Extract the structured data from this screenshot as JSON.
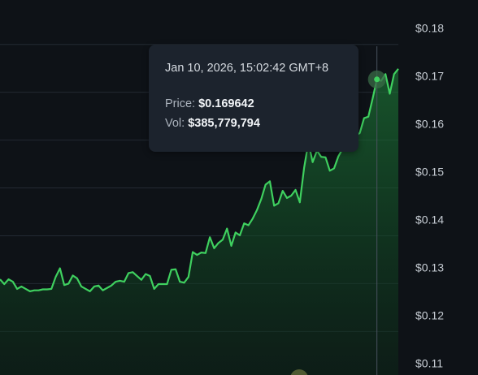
{
  "chart_data": {
    "type": "area",
    "ylim": [
      0.1075,
      0.1825
    ],
    "y_ticks": [
      "$0.18",
      "$0.17",
      "$0.16",
      "$0.15",
      "$0.14",
      "$0.13",
      "$0.12",
      "$0.11"
    ],
    "y_tick_values": [
      0.18,
      0.17,
      0.16,
      0.15,
      0.14,
      0.13,
      0.12,
      0.11
    ],
    "grid": true,
    "series": [
      {
        "values": [
          0.1275,
          0.1265,
          0.1275,
          0.127,
          0.1255,
          0.126,
          0.1255,
          0.125,
          0.1252,
          0.1252,
          0.1254,
          0.1254,
          0.1255,
          0.128,
          0.1298,
          0.1263,
          0.1266,
          0.1283,
          0.1277,
          0.126,
          0.1255,
          0.125,
          0.126,
          0.1262,
          0.1252,
          0.1257,
          0.1262,
          0.127,
          0.1272,
          0.127,
          0.1288,
          0.129,
          0.1282,
          0.1274,
          0.1286,
          0.1282,
          0.1255,
          0.1265,
          0.1265,
          0.1265,
          0.1295,
          0.1296,
          0.127,
          0.1268,
          0.128,
          0.1332,
          0.1326,
          0.1331,
          0.133,
          0.1363,
          0.134,
          0.1351,
          0.1358,
          0.1381,
          0.1345,
          0.1373,
          0.1367,
          0.1392,
          0.1388,
          0.1402,
          0.142,
          0.1443,
          0.1473,
          0.148,
          0.1429,
          0.1434,
          0.146,
          0.1445,
          0.145,
          0.1462,
          0.1436,
          0.1508,
          0.1561,
          0.152,
          0.1544,
          0.1531,
          0.153,
          0.1502,
          0.1507,
          0.1532,
          0.1548,
          0.1551,
          0.1576,
          0.1575,
          0.1581,
          0.1612,
          0.1615,
          0.1653,
          0.1693,
          0.169,
          0.1704,
          0.1663,
          0.1704,
          0.1715
        ]
      }
    ]
  },
  "tooltip": {
    "date": "Jan 10, 2026, 15:02:42 GMT+8",
    "price_label": "Price:",
    "price_value": "$0.169642",
    "vol_label": "Vol:",
    "vol_value": "$385,779,794"
  },
  "colors": {
    "background": "#0e1217",
    "line": "#3fd05f",
    "grid": "#232a33",
    "tooltip_bg": "#1c232d",
    "crosshair": "#4a5260"
  },
  "hover_index": 88
}
